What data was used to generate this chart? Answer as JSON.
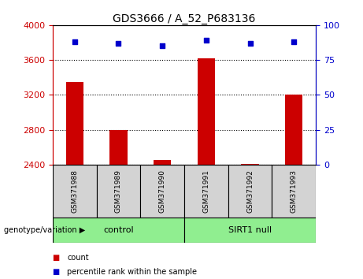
{
  "title": "GDS3666 / A_52_P683136",
  "samples": [
    "GSM371988",
    "GSM371989",
    "GSM371990",
    "GSM371991",
    "GSM371992",
    "GSM371993"
  ],
  "counts": [
    3350,
    2800,
    2450,
    3620,
    2410,
    3200
  ],
  "percentile_ranks": [
    88,
    87,
    85,
    89,
    87,
    88
  ],
  "ylim_left": [
    2400,
    4000
  ],
  "ylim_right": [
    0,
    100
  ],
  "yticks_left": [
    2400,
    2800,
    3200,
    3600,
    4000
  ],
  "yticks_right": [
    0,
    25,
    50,
    75,
    100
  ],
  "bar_color": "#cc0000",
  "dot_color": "#0000cc",
  "groups": [
    {
      "label": "control",
      "indices": [
        0,
        1,
        2
      ],
      "color": "#90ee90"
    },
    {
      "label": "SIRT1 null",
      "indices": [
        3,
        4,
        5
      ],
      "color": "#90ee90"
    }
  ],
  "group_label_prefix": "genotype/variation",
  "legend_count_label": "count",
  "legend_percentile_label": "percentile rank within the sample",
  "bar_width": 0.4,
  "dot_size": 25,
  "left_tick_color": "#cc0000",
  "right_tick_color": "#0000cc",
  "sample_bg_color": "#d3d3d3",
  "border_color": "#000000",
  "group_arrow_color": "#808080"
}
